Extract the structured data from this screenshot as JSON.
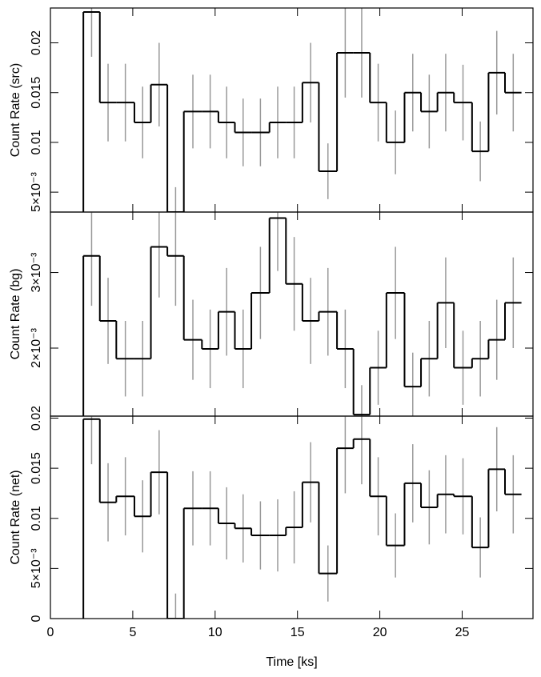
{
  "chart_data": [
    {
      "type": "histogram",
      "y_label": "Count Rate (src)",
      "color": "#000000",
      "error_color": "#999999",
      "bins": [
        2.0,
        3.0,
        4.0,
        5.1,
        6.1,
        7.1,
        8.1,
        9.2,
        10.2,
        11.2,
        12.2,
        13.3,
        14.3,
        15.3,
        16.3,
        17.4,
        18.4,
        19.4,
        20.4,
        21.5,
        22.5,
        23.5,
        24.5,
        25.6,
        26.6,
        27.6,
        28.6
      ],
      "values": [
        0.0231,
        0.014,
        0.014,
        0.012,
        0.0158,
        0.003,
        0.0131,
        0.0131,
        0.012,
        0.011,
        0.011,
        0.012,
        0.012,
        0.016,
        0.0071,
        0.019,
        0.019,
        0.014,
        0.01,
        0.015,
        0.0131,
        0.015,
        0.014,
        0.0091,
        0.017,
        0.015
      ],
      "errors": [
        0.0045,
        0.0039,
        0.0039,
        0.0036,
        0.0042,
        0.0025,
        0.0037,
        0.0037,
        0.0036,
        0.0034,
        0.0034,
        0.0036,
        0.0036,
        0.004,
        0.0028,
        0.0045,
        0.0045,
        0.0039,
        0.0032,
        0.0039,
        0.0037,
        0.0039,
        0.0038,
        0.003,
        0.0042,
        0.0039
      ],
      "xlim": [
        0,
        29.3
      ],
      "xticks": [
        0,
        5,
        10,
        15,
        20,
        25
      ],
      "ylim": [
        0.003,
        0.0235
      ],
      "yticks": [
        {
          "value": 0.005,
          "label": "5×10⁻³"
        },
        0.01,
        0.015,
        0.02
      ]
    },
    {
      "type": "histogram",
      "y_label": "Count Rate (bg)",
      "color": "#000000",
      "error_color": "#999999",
      "bins": [
        2.0,
        3.0,
        4.0,
        5.1,
        6.1,
        7.1,
        8.1,
        9.2,
        10.2,
        11.2,
        12.2,
        13.3,
        14.3,
        15.3,
        16.3,
        17.4,
        18.4,
        19.4,
        20.4,
        21.5,
        22.5,
        23.5,
        24.5,
        25.6,
        26.6,
        27.6,
        28.6
      ],
      "values": [
        0.00322,
        0.00236,
        0.00186,
        0.00186,
        0.00334,
        0.00322,
        0.00211,
        0.00199,
        0.00248,
        0.00199,
        0.00273,
        0.00372,
        0.00285,
        0.00236,
        0.00248,
        0.00199,
        0.00112,
        0.00174,
        0.00273,
        0.00149,
        0.00186,
        0.0026,
        0.00174,
        0.00186,
        0.00211,
        0.0026
      ],
      "errors": [
        0.00066,
        0.00057,
        0.0005,
        0.0005,
        0.00067,
        0.00066,
        0.00053,
        0.00052,
        0.00058,
        0.00052,
        0.00061,
        0.0007,
        0.00062,
        0.00057,
        0.00058,
        0.00052,
        0.00039,
        0.00049,
        0.00061,
        0.00045,
        0.0005,
        0.0006,
        0.00049,
        0.0005,
        0.00053,
        0.0006
      ],
      "xlim": [
        0,
        29.3
      ],
      "xticks": [
        0,
        5,
        10,
        15,
        20,
        25
      ],
      "ylim": [
        0.0011,
        0.0038
      ],
      "yticks": [
        {
          "value": 0.002,
          "label": "2×10⁻³"
        },
        {
          "value": 0.003,
          "label": "3×10⁻³"
        }
      ]
    },
    {
      "type": "histogram",
      "y_label": "Count Rate (net)",
      "x_label": "Time [ks]",
      "color": "#000000",
      "error_color": "#999999",
      "bins": [
        2.0,
        3.0,
        4.0,
        5.1,
        6.1,
        7.1,
        8.1,
        9.2,
        10.2,
        11.2,
        12.2,
        13.3,
        14.3,
        15.3,
        16.3,
        17.4,
        18.4,
        19.4,
        20.4,
        21.5,
        22.5,
        23.5,
        24.5,
        25.6,
        26.6,
        27.6,
        28.6
      ],
      "values": [
        0.0199,
        0.0116,
        0.0122,
        0.0102,
        0.0146,
        0,
        0.011,
        0.011,
        0.0095,
        0.009,
        0.0083,
        0.0083,
        0.0091,
        0.0136,
        0.0045,
        0.017,
        0.0179,
        0.0122,
        0.0073,
        0.0135,
        0.0111,
        0.0124,
        0.0122,
        0.0071,
        0.0149,
        0.0124
      ],
      "errors": [
        0.0045,
        0.0039,
        0.0039,
        0.0036,
        0.0042,
        0.0025,
        0.0037,
        0.0037,
        0.0036,
        0.0034,
        0.0034,
        0.0036,
        0.0036,
        0.004,
        0.0028,
        0.0045,
        0.0045,
        0.0039,
        0.0032,
        0.0039,
        0.0037,
        0.0039,
        0.0038,
        0.003,
        0.0042,
        0.0039
      ],
      "xlim": [
        0,
        29.3
      ],
      "xticks": [
        0,
        5,
        10,
        15,
        20,
        25
      ],
      "ylim": [
        0,
        0.0202
      ],
      "yticks": [
        0,
        {
          "value": 0.005,
          "label": "5×10⁻³"
        },
        0.01,
        0.015,
        0.02
      ]
    }
  ]
}
